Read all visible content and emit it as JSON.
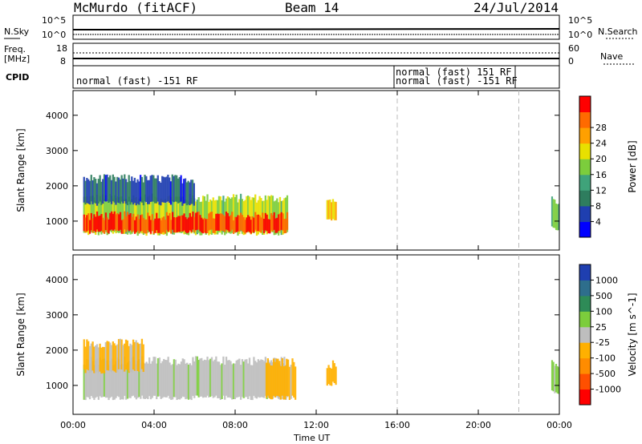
{
  "header": {
    "station": "McMurdo (fitACF)",
    "beam": "Beam 14",
    "date": "24/Jul/2014"
  },
  "top_panel": {
    "left_labels": [
      "N.Sky",
      "Freq.",
      "[MHz]",
      "CPID"
    ],
    "right_labels": [
      "N.Search",
      "Nave"
    ],
    "nsky_ticks": [
      "10^5",
      "10^0"
    ],
    "nsearch_ticks": [
      "10^5",
      "10^0"
    ],
    "freq_ticks": [
      "18",
      "8"
    ],
    "nave_ticks": [
      "60",
      "0"
    ],
    "cpid_segments": [
      {
        "label": "normal (fast) -151 RF",
        "start": "00:00"
      },
      {
        "label": "normal (fast) 151 RF",
        "start": "16:00"
      },
      {
        "label": "normal (fast) -151 RF",
        "start": "16:00"
      }
    ]
  },
  "chart_data": [
    {
      "type": "heatmap",
      "title": "",
      "xlabel": "Time UT",
      "ylabel": "Slant Range [km]",
      "x_ticks": [
        "00:00",
        "04:00",
        "08:00",
        "12:00",
        "16:00",
        "20:00",
        "00:00"
      ],
      "xlim_hours": [
        0,
        24
      ],
      "y_ticks": [
        1000,
        2000,
        3000,
        4000
      ],
      "ylim": [
        180,
        4700
      ],
      "colorbar": {
        "label": "Power [dB]",
        "ticks": [
          "4",
          "8",
          "12",
          "16",
          "20",
          "24",
          "28"
        ],
        "range": [
          0,
          30
        ],
        "colors": [
          "#0000ff",
          "#1f3fb0",
          "#2e7d5e",
          "#3fa37a",
          "#7ccd3c",
          "#e8e000",
          "#ffa000",
          "#ff6a00",
          "#ff0000"
        ]
      },
      "bands": [
        {
          "t": [
            0.5,
            10.6
          ],
          "range_km": [
            650,
            1650
          ],
          "value": 16
        },
        {
          "t": [
            0.5,
            10.6
          ],
          "range_km": [
            700,
            1150
          ],
          "value": 27
        },
        {
          "t": [
            0.5,
            6.0
          ],
          "range_km": [
            1500,
            2200
          ],
          "value": 6
        },
        {
          "t": [
            12.5,
            13.0
          ],
          "range_km": [
            1050,
            1600
          ],
          "value": 20
        },
        {
          "t": [
            23.6,
            24.0
          ],
          "range_km": [
            800,
            1600
          ],
          "value": 14
        }
      ]
    },
    {
      "type": "heatmap",
      "title": "",
      "xlabel": "Time UT",
      "ylabel": "Slant Range [km]",
      "x_ticks": [
        "00:00",
        "04:00",
        "08:00",
        "12:00",
        "16:00",
        "20:00",
        "00:00"
      ],
      "xlim_hours": [
        0,
        24
      ],
      "y_ticks": [
        1000,
        2000,
        3000,
        4000
      ],
      "ylim": [
        180,
        4700
      ],
      "colorbar": {
        "label": "Velocity [m s^-1]",
        "ticks": [
          "1000",
          "500",
          "100",
          "25",
          "-25",
          "-100",
          "-500",
          "-1000"
        ],
        "range": [
          -1200,
          1200
        ],
        "colors": [
          "#1f3fb0",
          "#2e6e8c",
          "#2e8b57",
          "#7ccd3c",
          "#bebebe",
          "#ffb000",
          "#ff8c00",
          "#ff5000",
          "#ff0000"
        ]
      },
      "bands": [
        {
          "t": [
            0.5,
            10.6
          ],
          "range_km": [
            650,
            1700
          ],
          "value": 80
        },
        {
          "t": [
            0.5,
            3.5
          ],
          "range_km": [
            1400,
            2200
          ],
          "value": -150
        },
        {
          "t": [
            9.5,
            11.0
          ],
          "range_km": [
            650,
            1650
          ],
          "value": -200
        },
        {
          "t": [
            12.5,
            13.0
          ],
          "range_km": [
            1050,
            1600
          ],
          "value": -300
        },
        {
          "t": [
            23.6,
            24.0
          ],
          "range_km": [
            800,
            1600
          ],
          "value": 200
        }
      ]
    }
  ]
}
